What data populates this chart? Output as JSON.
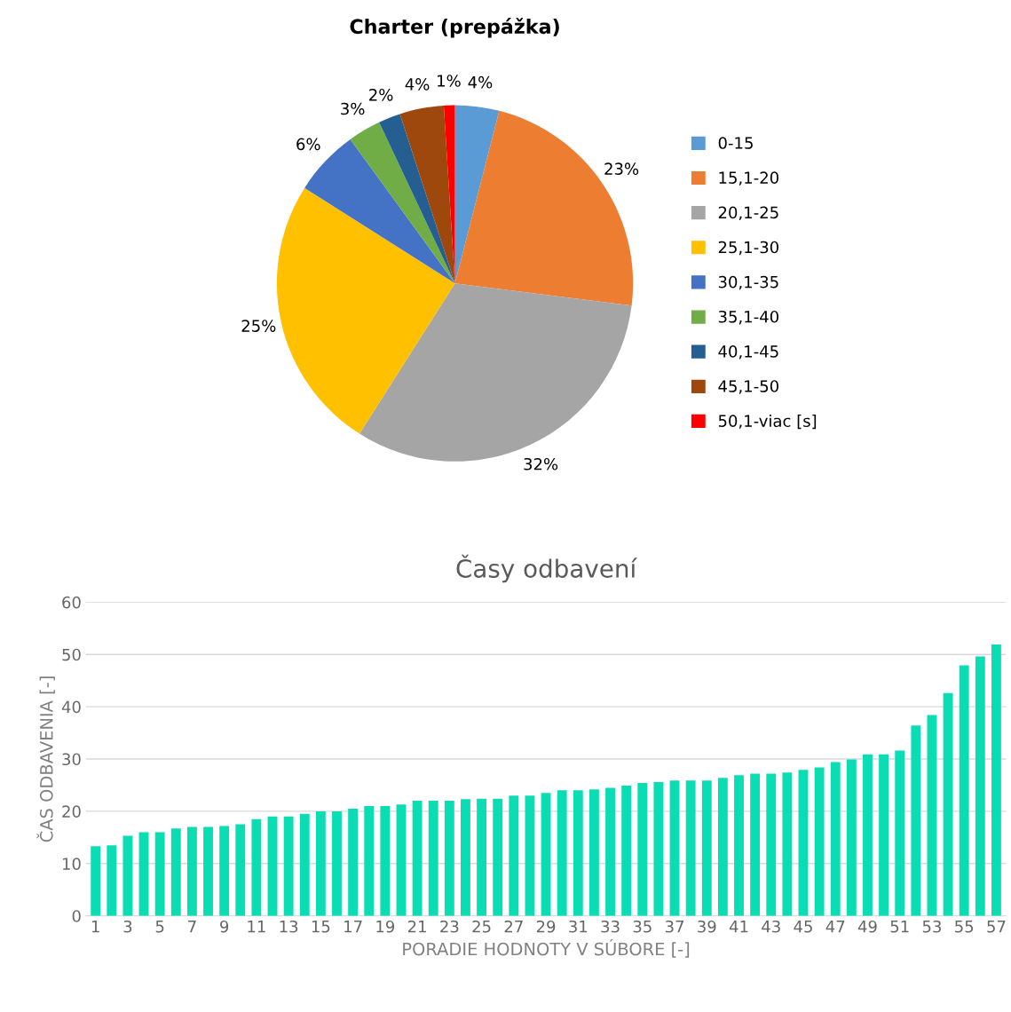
{
  "chart_data": [
    {
      "type": "pie",
      "title": "Charter (prepážka)",
      "legend": "right",
      "value_labels": [
        "4%",
        "23%",
        "32%",
        "25%",
        "6%",
        "3%",
        "2%",
        "4%",
        "1%"
      ],
      "categories": [
        "0-15",
        "15,1-20",
        "20,1-25",
        "25,1-30",
        "30,1-35",
        "35,1-40",
        "40,1-45",
        "45,1-50",
        "50,1-viac [s]"
      ],
      "values": [
        4,
        23,
        32,
        25,
        6,
        3,
        2,
        4,
        1
      ],
      "colors": [
        "#5b9bd5",
        "#ed7d31",
        "#a5a5a5",
        "#ffc000",
        "#4472c4",
        "#70ad47",
        "#255e91",
        "#9e480e",
        "#ff0000"
      ]
    },
    {
      "type": "bar",
      "title": "Časy odbavení",
      "xlabel": "PORADIE HODNOTY V SÚBORE [-]",
      "ylabel": "ČAS ODBAVENIA [-]",
      "grid": "y",
      "legend": false,
      "categories": [
        "1",
        null,
        "3",
        null,
        "5",
        null,
        "7",
        null,
        "9",
        null,
        "11",
        null,
        "13",
        null,
        "15",
        null,
        "17",
        null,
        "19",
        null,
        "21",
        null,
        "23",
        null,
        "25",
        null,
        "27",
        null,
        "29",
        null,
        "31",
        null,
        "33",
        null,
        "35",
        null,
        "37",
        null,
        "39",
        null,
        "41",
        null,
        "43",
        null,
        "45",
        null,
        "47",
        null,
        "49",
        null,
        "51",
        null,
        "53",
        null,
        "55",
        null,
        "57"
      ],
      "series": [
        {
          "color": "#0adcb4",
          "values": [
            13.3,
            13.5,
            15.3,
            16.0,
            16.0,
            16.7,
            17.0,
            17.0,
            17.2,
            17.5,
            18.5,
            19.0,
            19.0,
            19.5,
            20.0,
            20.0,
            20.5,
            21.0,
            21.0,
            21.3,
            22.0,
            22.0,
            22.0,
            22.3,
            22.4,
            22.4,
            23.0,
            23.0,
            23.5,
            24.0,
            24.0,
            24.2,
            24.5,
            24.9,
            25.4,
            25.6,
            25.9,
            25.9,
            25.9,
            26.4,
            26.9,
            27.2,
            27.2,
            27.4,
            27.9,
            28.4,
            29.4,
            29.9,
            30.9,
            30.9,
            31.6,
            36.4,
            38.4,
            42.6,
            47.9,
            49.6,
            51.9
          ]
        }
      ],
      "ylim": [
        0,
        60
      ],
      "yticks": [
        0,
        10,
        20,
        30,
        40,
        50,
        60
      ]
    }
  ]
}
